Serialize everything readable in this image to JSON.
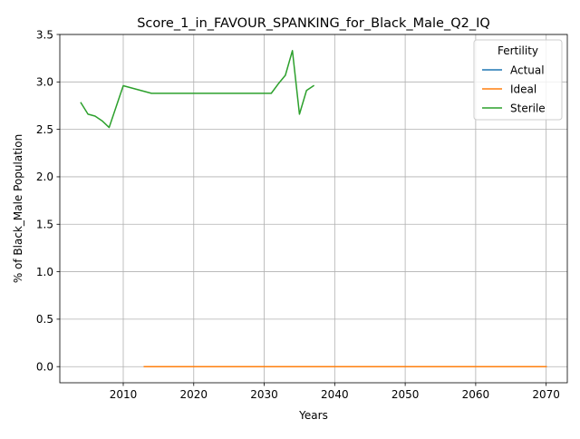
{
  "chart_data": {
    "type": "line",
    "title": "Score_1_in_FAVOUR_SPANKING_for_Black_Male_Q2_IQ",
    "xlabel": "Years",
    "ylabel": "% of Black_Male Population",
    "xlim": [
      2001,
      2073
    ],
    "ylim": [
      -0.17,
      3.5
    ],
    "grid": true,
    "x_ticks": [
      2010,
      2020,
      2030,
      2040,
      2050,
      2060,
      2070
    ],
    "y_ticks": [
      0.0,
      0.5,
      1.0,
      1.5,
      2.0,
      2.5,
      3.0,
      3.5
    ],
    "x_tick_labels": [
      "2010",
      "2020",
      "2030",
      "2040",
      "2050",
      "2060",
      "2070"
    ],
    "y_tick_labels": [
      "0.0",
      "0.5",
      "1.0",
      "1.5",
      "2.0",
      "2.5",
      "3.0",
      "3.5"
    ],
    "legend": {
      "title": "Fertility",
      "placement": "top-right"
    },
    "series": [
      {
        "name": "Actual",
        "color": "#1f77b4",
        "x": [
          2013,
          2070
        ],
        "y": [
          0.0,
          0.0
        ]
      },
      {
        "name": "Ideal",
        "color": "#ff7f0e",
        "x": [
          2013,
          2070
        ],
        "y": [
          0.0,
          0.0
        ]
      },
      {
        "name": "Sterile",
        "color": "#2ca02c",
        "x": [
          2004,
          2005,
          2006,
          2007,
          2008,
          2010,
          2014,
          2020,
          2025,
          2031,
          2032,
          2033,
          2034,
          2035,
          2036,
          2037
        ],
        "y": [
          2.78,
          2.66,
          2.64,
          2.59,
          2.52,
          2.96,
          2.88,
          2.88,
          2.88,
          2.88,
          2.98,
          3.07,
          3.33,
          2.66,
          2.91,
          2.96
        ]
      }
    ]
  }
}
